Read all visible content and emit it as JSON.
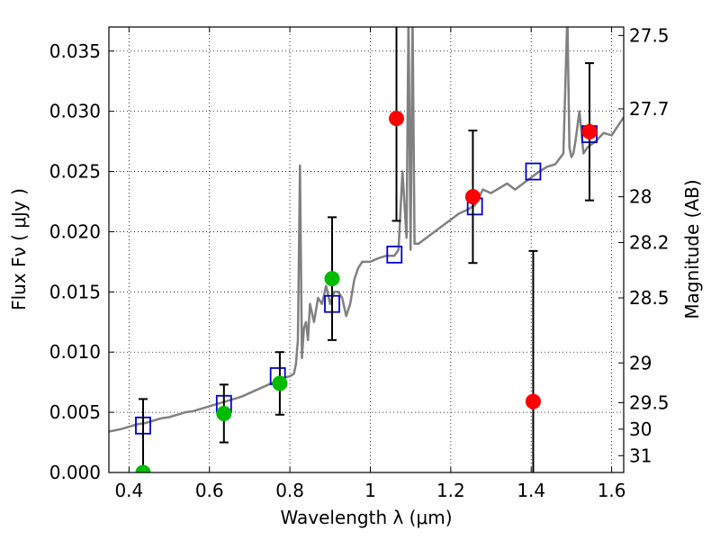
{
  "chart_data": {
    "type": "scatter",
    "xlabel": "Wavelength  λ (μm)",
    "ylabel": "Flux  Fν  ( μJy )",
    "y2label": "Magnitude (AB)",
    "xlim": [
      0.35,
      1.63
    ],
    "ylim": [
      0.0,
      0.037
    ],
    "grid": true,
    "x_ticks": [
      0.4,
      0.6,
      0.8,
      1.0,
      1.2,
      1.4,
      1.6
    ],
    "x_tick_labels": [
      "0.4",
      "0.6",
      "0.8",
      "1",
      "1.2",
      "1.4",
      "1.6"
    ],
    "y_ticks": [
      0.0,
      0.005,
      0.01,
      0.015,
      0.02,
      0.025,
      0.03,
      0.035
    ],
    "y_tick_labels": [
      "0.000",
      "0.005",
      "0.010",
      "0.015",
      "0.020",
      "0.025",
      "0.030",
      "0.035"
    ],
    "mag_ticks": [
      {
        "label": "27.5",
        "flux": 0.0363
      },
      {
        "label": "27.7",
        "flux": 0.0302
      },
      {
        "label": "28",
        "flux": 0.0229
      },
      {
        "label": "28.2",
        "flux": 0.0191
      },
      {
        "label": "28.5",
        "flux": 0.0145
      },
      {
        "label": "29",
        "flux": 0.0091
      },
      {
        "label": "29.5",
        "flux": 0.0058
      },
      {
        "label": "30",
        "flux": 0.0036
      },
      {
        "label": "31",
        "flux": 0.0014
      }
    ],
    "template_spectrum": {
      "color": "#808080",
      "x": [
        0.35,
        0.38,
        0.4,
        0.42,
        0.44,
        0.46,
        0.48,
        0.5,
        0.52,
        0.54,
        0.56,
        0.58,
        0.6,
        0.62,
        0.64,
        0.66,
        0.68,
        0.7,
        0.72,
        0.74,
        0.76,
        0.78,
        0.8,
        0.81,
        0.815,
        0.82,
        0.825,
        0.83,
        0.835,
        0.84,
        0.845,
        0.85,
        0.86,
        0.87,
        0.88,
        0.89,
        0.9,
        0.91,
        0.92,
        0.93,
        0.94,
        0.95,
        0.96,
        0.97,
        0.98,
        1.0,
        1.02,
        1.04,
        1.06,
        1.07,
        1.08,
        1.09,
        1.095,
        1.1,
        1.105,
        1.11,
        1.12,
        1.14,
        1.16,
        1.18,
        1.2,
        1.22,
        1.24,
        1.26,
        1.28,
        1.3,
        1.32,
        1.34,
        1.36,
        1.38,
        1.4,
        1.42,
        1.44,
        1.46,
        1.48,
        1.49,
        1.495,
        1.5,
        1.505,
        1.51,
        1.52,
        1.53,
        1.54,
        1.56,
        1.58,
        1.6,
        1.63
      ],
      "y": [
        0.0034,
        0.0036,
        0.0038,
        0.004,
        0.0041,
        0.0043,
        0.0045,
        0.0046,
        0.0048,
        0.005,
        0.0051,
        0.0053,
        0.0055,
        0.0057,
        0.0059,
        0.0061,
        0.0063,
        0.0066,
        0.0069,
        0.0072,
        0.0075,
        0.0078,
        0.008,
        0.0082,
        0.009,
        0.011,
        0.0255,
        0.0095,
        0.012,
        0.0125,
        0.011,
        0.014,
        0.0125,
        0.0145,
        0.014,
        0.0155,
        0.014,
        0.015,
        0.015,
        0.0145,
        0.013,
        0.014,
        0.016,
        0.017,
        0.0175,
        0.0175,
        0.0178,
        0.018,
        0.018,
        0.0185,
        0.025,
        0.0195,
        0.038,
        0.0185,
        0.038,
        0.019,
        0.019,
        0.0195,
        0.02,
        0.0205,
        0.021,
        0.0215,
        0.0218,
        0.0222,
        0.0235,
        0.0232,
        0.0236,
        0.024,
        0.0235,
        0.024,
        0.0245,
        0.025,
        0.0254,
        0.0256,
        0.0265,
        0.038,
        0.027,
        0.0262,
        0.0265,
        0.0275,
        0.03,
        0.0265,
        0.027,
        0.0275,
        0.0282,
        0.028,
        0.0295
      ]
    },
    "model_photometry": {
      "color": "#0000cc",
      "marker": "square",
      "x": [
        0.435,
        0.636,
        0.77,
        0.905,
        1.06,
        1.26,
        1.405,
        1.545
      ],
      "y": [
        0.0039,
        0.0057,
        0.008,
        0.014,
        0.0181,
        0.0221,
        0.025,
        0.0281
      ]
    },
    "detections": {
      "color": "#ff0000",
      "marker": "circle",
      "x": [
        1.065,
        1.255,
        1.405,
        1.545
      ],
      "y": [
        0.0294,
        0.0229,
        0.0059,
        0.0283
      ],
      "err": [
        0.0085,
        0.0055,
        0.0125,
        0.0057
      ]
    },
    "other_points": {
      "color": "#00bb00",
      "marker": "circle",
      "x": [
        0.435,
        0.636,
        0.775,
        0.905
      ],
      "y": [
        0.0,
        0.0049,
        0.0074,
        0.0161
      ],
      "err": [
        0.0061,
        0.0024,
        0.0026,
        0.0051
      ]
    }
  }
}
